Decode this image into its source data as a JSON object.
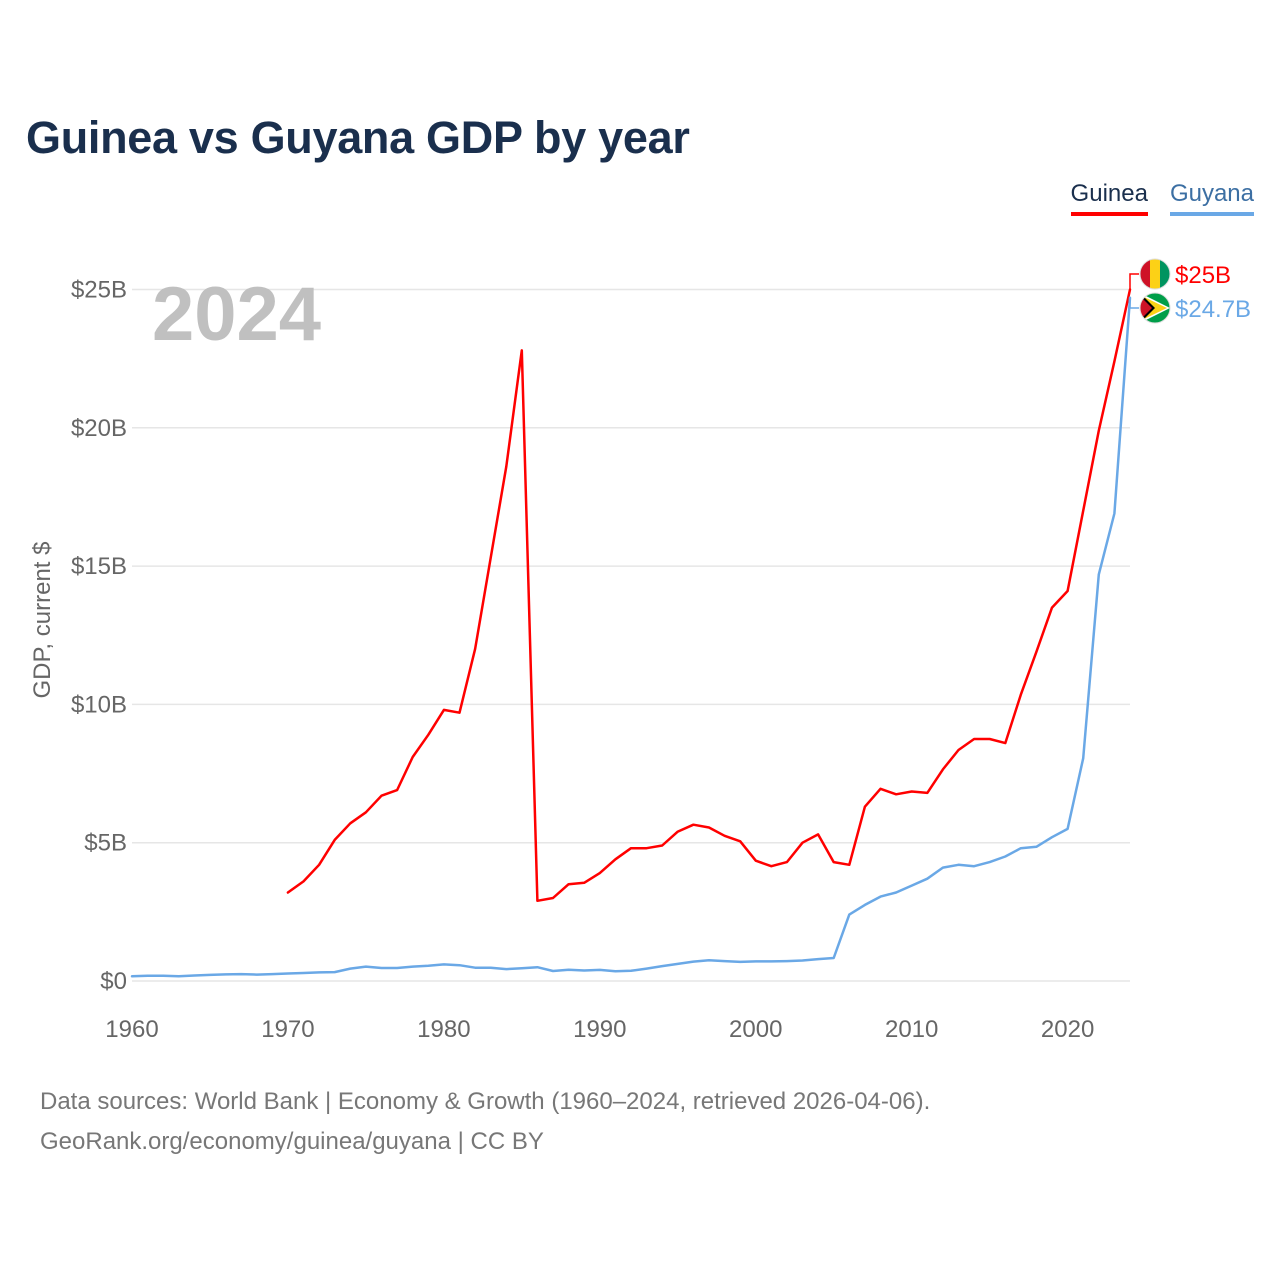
{
  "title": "Guinea vs Guyana GDP by year",
  "legend": {
    "guinea": "Guinea",
    "guyana": "Guyana"
  },
  "year_label": "2024",
  "footer": {
    "line1": "Data sources: World Bank | Economy & Growth (1960–2024, retrieved 2026-04-06).",
    "line2": "GeoRank.org/economy/guinea/guyana | CC BY"
  },
  "colors": {
    "guinea": "#ff0000",
    "guyana": "#6aa8e6",
    "title": "#1a2f4d",
    "axis_text": "#666666",
    "grid": "#e6e6e6",
    "year_label": "#c0c0c0"
  },
  "chart_data": {
    "type": "line",
    "title": "Guinea vs Guyana GDP by year",
    "xlabel": "",
    "ylabel": "GDP, current $",
    "xlim": [
      1960,
      2024
    ],
    "ylim": [
      0,
      25
    ],
    "x_ticks": [
      1960,
      1970,
      1980,
      1990,
      2000,
      2010,
      2020
    ],
    "y_ticks": [
      {
        "value": 0,
        "label": "$0"
      },
      {
        "value": 5,
        "label": "$5B"
      },
      {
        "value": 10,
        "label": "$10B"
      },
      {
        "value": 15,
        "label": "$15B"
      },
      {
        "value": 20,
        "label": "$20B"
      },
      {
        "value": 25,
        "label": "$25B"
      }
    ],
    "grid": true,
    "legend_position": "top-right",
    "series": [
      {
        "name": "Guinea",
        "color": "#ff0000",
        "end_label": "$25B",
        "flag": "guinea-flag",
        "x": [
          1970,
          1971,
          1972,
          1973,
          1974,
          1975,
          1976,
          1977,
          1978,
          1979,
          1980,
          1981,
          1982,
          1983,
          1984,
          1985,
          1986,
          1987,
          1988,
          1989,
          1990,
          1991,
          1992,
          1993,
          1994,
          1995,
          1996,
          1997,
          1998,
          1999,
          2000,
          2001,
          2002,
          2003,
          2004,
          2005,
          2006,
          2007,
          2008,
          2009,
          2010,
          2011,
          2012,
          2013,
          2014,
          2015,
          2016,
          2017,
          2018,
          2019,
          2020,
          2021,
          2022,
          2023,
          2024
        ],
        "values": [
          3.2,
          3.6,
          4.2,
          5.1,
          5.7,
          6.1,
          6.7,
          6.9,
          8.1,
          8.9,
          9.8,
          9.7,
          12.0,
          15.3,
          18.6,
          22.8,
          2.9,
          3.0,
          3.5,
          3.55,
          3.9,
          4.4,
          4.8,
          4.8,
          4.9,
          5.4,
          5.65,
          5.55,
          5.25,
          5.05,
          4.35,
          4.15,
          4.3,
          5.0,
          5.3,
          4.3,
          4.2,
          6.3,
          6.95,
          6.75,
          6.85,
          6.8,
          7.65,
          8.35,
          8.75,
          8.75,
          8.6,
          10.35,
          11.9,
          13.5,
          14.1,
          17.0,
          19.9,
          22.4,
          25.0
        ]
      },
      {
        "name": "Guyana",
        "color": "#6aa8e6",
        "end_label": "$24.7B",
        "flag": "guyana-flag",
        "x": [
          1960,
          1961,
          1962,
          1963,
          1964,
          1965,
          1966,
          1967,
          1968,
          1969,
          1970,
          1971,
          1972,
          1973,
          1974,
          1975,
          1976,
          1977,
          1978,
          1979,
          1980,
          1981,
          1982,
          1983,
          1984,
          1985,
          1986,
          1987,
          1988,
          1989,
          1990,
          1991,
          1992,
          1993,
          1994,
          1995,
          1996,
          1997,
          1998,
          1999,
          2000,
          2001,
          2002,
          2003,
          2004,
          2005,
          2006,
          2007,
          2008,
          2009,
          2010,
          2011,
          2012,
          2013,
          2014,
          2015,
          2016,
          2017,
          2018,
          2019,
          2020,
          2021,
          2022,
          2023,
          2024
        ],
        "values": [
          0.17,
          0.19,
          0.19,
          0.17,
          0.2,
          0.22,
          0.24,
          0.25,
          0.23,
          0.25,
          0.27,
          0.29,
          0.31,
          0.32,
          0.45,
          0.52,
          0.47,
          0.47,
          0.52,
          0.55,
          0.6,
          0.57,
          0.48,
          0.48,
          0.43,
          0.46,
          0.5,
          0.36,
          0.41,
          0.38,
          0.4,
          0.35,
          0.37,
          0.45,
          0.54,
          0.62,
          0.7,
          0.75,
          0.72,
          0.69,
          0.71,
          0.71,
          0.72,
          0.74,
          0.79,
          0.83,
          2.4,
          2.75,
          3.05,
          3.2,
          3.45,
          3.7,
          4.1,
          4.2,
          4.15,
          4.3,
          4.5,
          4.8,
          4.85,
          5.2,
          5.5,
          8.05,
          14.7,
          16.9,
          24.7
        ]
      }
    ]
  }
}
